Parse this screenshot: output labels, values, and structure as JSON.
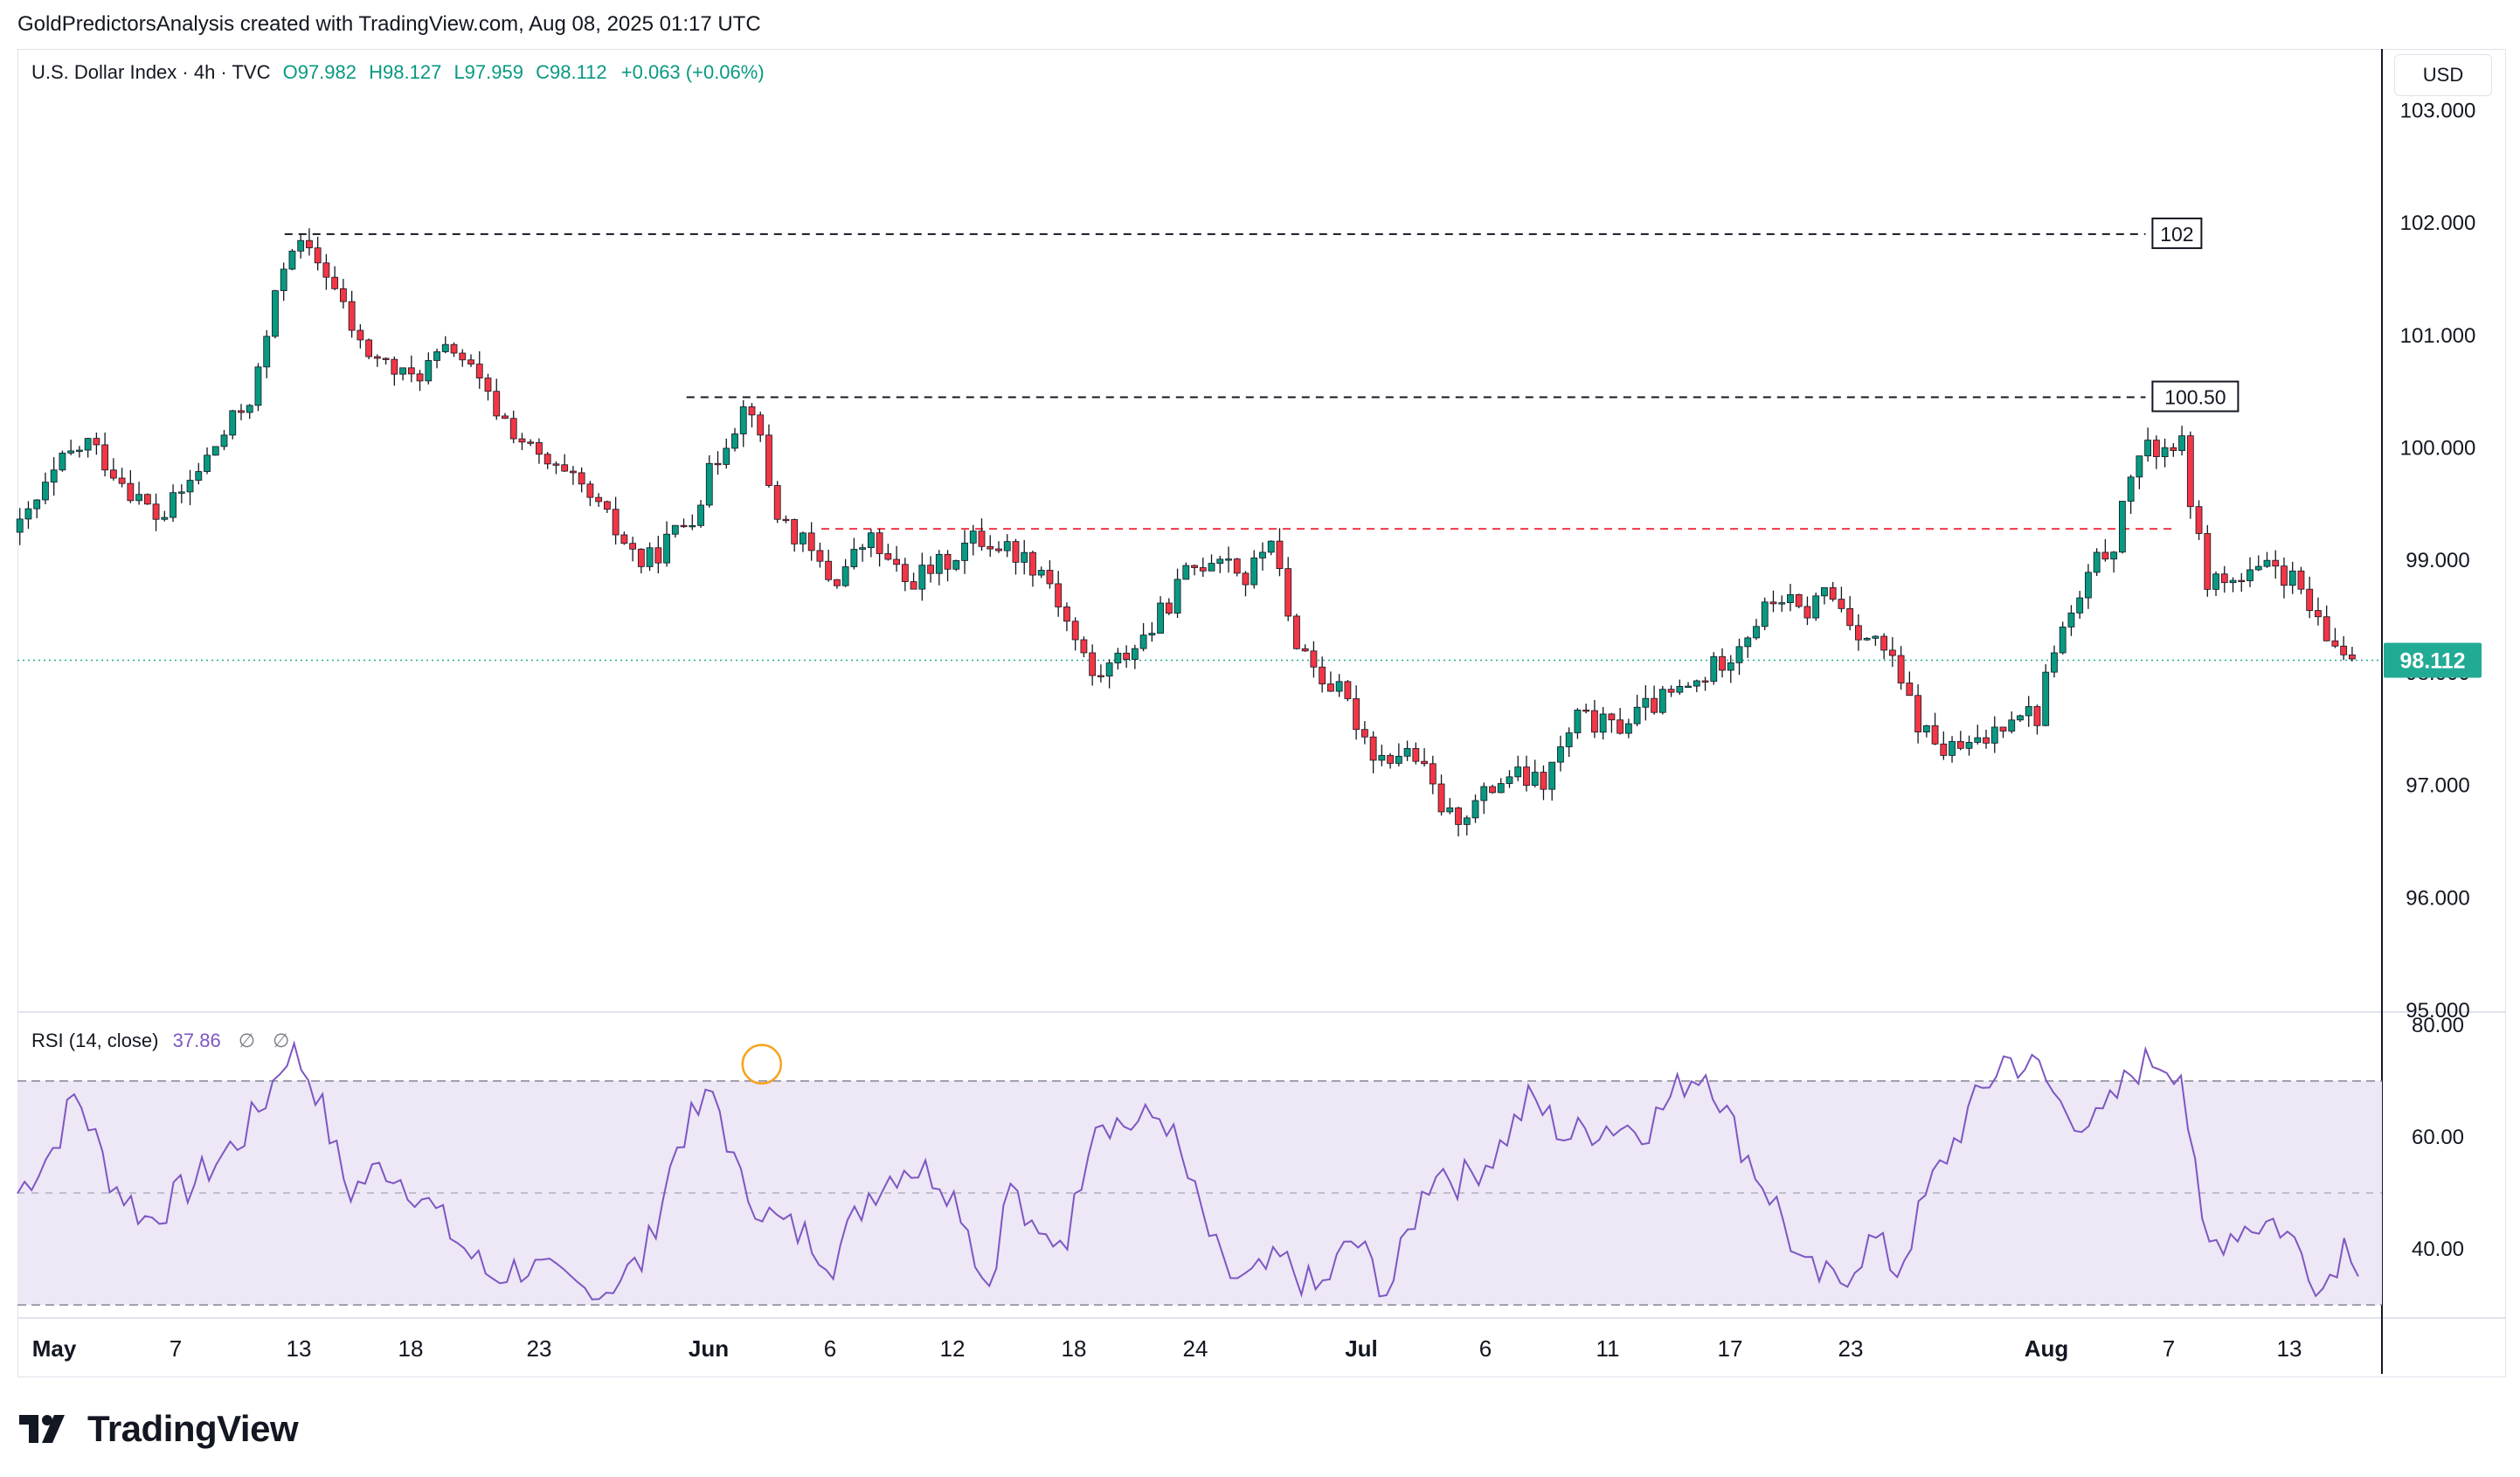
{
  "caption": "GoldPredictorsAnalysis created with TradingView.com, Aug 08, 2025 01:17 UTC",
  "legend": {
    "symbol": "U.S. Dollar Index · 4h · TVC",
    "open": "O97.982",
    "high": "H98.127",
    "low": "L97.959",
    "close": "C98.112",
    "change": "+0.063 (+0.06%)"
  },
  "rsi_legend": {
    "label": "RSI (14, close)",
    "value": "37.86",
    "ph1": "∅",
    "ph2": "∅"
  },
  "currency": "USD",
  "logo_text": "TradingView",
  "colors": {
    "up": "#089981",
    "down": "#f23645",
    "rsi_line": "#7e57c2",
    "rsi_band": "#ede7f6",
    "price_tag": "#22ab94",
    "red_dash": "#f23645"
  },
  "chart_data": {
    "type": "candlestick",
    "price_axis": {
      "ylim": [
        95.0,
        103.5
      ],
      "ticks": [
        "103.000",
        "102.000",
        "101.000",
        "100.000",
        "99.000",
        "98.000",
        "97.000",
        "96.000",
        "95.000"
      ]
    },
    "rsi_axis": {
      "ylim": [
        30,
        80
      ],
      "ticks": [
        "80.00",
        "60.00",
        "40.00"
      ],
      "bands": [
        70,
        50,
        30
      ]
    },
    "x_ticks": [
      "May",
      "7",
      "13",
      "18",
      "23",
      "Jun",
      "6",
      "12",
      "18",
      "24",
      "Jul",
      "6",
      "11",
      "17",
      "23",
      "Aug",
      "7",
      "13"
    ],
    "last_price": "98.112",
    "levels": [
      {
        "label": "102",
        "value": 101.9,
        "style": "black-dash"
      },
      {
        "label": "100.50",
        "value": 100.45,
        "style": "black-dash"
      },
      {
        "label": "",
        "value": 99.28,
        "style": "red-dash"
      }
    ],
    "price_path": [
      [
        0,
        99.25
      ],
      [
        20,
        99.9
      ],
      [
        30,
        100.05
      ],
      [
        45,
        99.7
      ],
      [
        60,
        99.35
      ],
      [
        75,
        99.75
      ],
      [
        100,
        100.5
      ],
      [
        115,
        101.85
      ],
      [
        130,
        101.6
      ],
      [
        145,
        100.9
      ],
      [
        165,
        100.6
      ],
      [
        185,
        100.9
      ],
      [
        200,
        100.4
      ],
      [
        220,
        99.9
      ],
      [
        240,
        99.6
      ],
      [
        265,
        98.95
      ],
      [
        285,
        99.4
      ],
      [
        300,
        100.1
      ],
      [
        310,
        100.45
      ],
      [
        320,
        99.45
      ],
      [
        330,
        99.2
      ],
      [
        345,
        98.8
      ],
      [
        360,
        99.2
      ],
      [
        375,
        98.8
      ],
      [
        390,
        98.95
      ],
      [
        405,
        99.2
      ],
      [
        420,
        99.1
      ],
      [
        435,
        98.9
      ],
      [
        445,
        98.4
      ],
      [
        455,
        97.95
      ],
      [
        465,
        98.1
      ],
      [
        480,
        98.4
      ],
      [
        495,
        98.9
      ],
      [
        510,
        99.1
      ],
      [
        520,
        98.8
      ],
      [
        530,
        99.25
      ],
      [
        538,
        98.4
      ],
      [
        550,
        98.0
      ],
      [
        560,
        97.8
      ],
      [
        575,
        97.25
      ],
      [
        590,
        97.3
      ],
      [
        605,
        96.7
      ],
      [
        615,
        96.8
      ],
      [
        630,
        97.1
      ],
      [
        645,
        97.0
      ],
      [
        660,
        97.6
      ],
      [
        675,
        97.5
      ],
      [
        690,
        97.7
      ],
      [
        710,
        97.9
      ],
      [
        725,
        98.2
      ],
      [
        735,
        98.45
      ],
      [
        745,
        98.7
      ],
      [
        755,
        98.5
      ],
      [
        765,
        98.75
      ],
      [
        780,
        98.35
      ],
      [
        790,
        98.2
      ],
      [
        805,
        97.5
      ],
      [
        815,
        97.3
      ],
      [
        830,
        97.35
      ],
      [
        845,
        97.7
      ],
      [
        855,
        97.6
      ],
      [
        860,
        98.2
      ],
      [
        870,
        98.55
      ],
      [
        880,
        99.0
      ],
      [
        888,
        99.2
      ],
      [
        895,
        99.9
      ],
      [
        905,
        100.0
      ],
      [
        915,
        100.05
      ],
      [
        925,
        98.85
      ],
      [
        940,
        98.8
      ],
      [
        955,
        98.95
      ],
      [
        965,
        98.75
      ],
      [
        975,
        98.3
      ],
      [
        985,
        98.2
      ],
      [
        990,
        98.11
      ]
    ],
    "rsi_path": [
      [
        0,
        50
      ],
      [
        15,
        58
      ],
      [
        25,
        68
      ],
      [
        40,
        52
      ],
      [
        55,
        45
      ],
      [
        75,
        52
      ],
      [
        95,
        60
      ],
      [
        105,
        67
      ],
      [
        115,
        76
      ],
      [
        125,
        70
      ],
      [
        140,
        50
      ],
      [
        155,
        55
      ],
      [
        170,
        50
      ],
      [
        185,
        42
      ],
      [
        200,
        35
      ],
      [
        215,
        37
      ],
      [
        230,
        34
      ],
      [
        245,
        32
      ],
      [
        265,
        38
      ],
      [
        280,
        60
      ],
      [
        295,
        68
      ],
      [
        305,
        52
      ],
      [
        320,
        45
      ],
      [
        335,
        42
      ],
      [
        345,
        38
      ],
      [
        360,
        50
      ],
      [
        375,
        55
      ],
      [
        390,
        53
      ],
      [
        400,
        47
      ],
      [
        410,
        32
      ],
      [
        420,
        52
      ],
      [
        430,
        41
      ],
      [
        445,
        43
      ],
      [
        455,
        64
      ],
      [
        470,
        62
      ],
      [
        485,
        64
      ],
      [
        500,
        47
      ],
      [
        510,
        36
      ],
      [
        520,
        34
      ],
      [
        535,
        38
      ],
      [
        550,
        32
      ],
      [
        565,
        42
      ],
      [
        580,
        32
      ],
      [
        590,
        45
      ],
      [
        600,
        55
      ],
      [
        610,
        52
      ],
      [
        625,
        57
      ],
      [
        640,
        67
      ],
      [
        655,
        60
      ],
      [
        670,
        62
      ],
      [
        690,
        62
      ],
      [
        705,
        70
      ],
      [
        715,
        72
      ],
      [
        725,
        62
      ],
      [
        735,
        54
      ],
      [
        745,
        47
      ],
      [
        755,
        36
      ],
      [
        770,
        34
      ],
      [
        785,
        42
      ],
      [
        795,
        36
      ],
      [
        810,
        52
      ],
      [
        825,
        64
      ],
      [
        840,
        74
      ],
      [
        855,
        72
      ],
      [
        865,
        65
      ],
      [
        880,
        62
      ],
      [
        895,
        72
      ],
      [
        905,
        74
      ],
      [
        915,
        72
      ],
      [
        925,
        40
      ],
      [
        940,
        44
      ],
      [
        955,
        45
      ],
      [
        965,
        40
      ],
      [
        975,
        33
      ],
      [
        985,
        42
      ],
      [
        990,
        38
      ]
    ]
  }
}
